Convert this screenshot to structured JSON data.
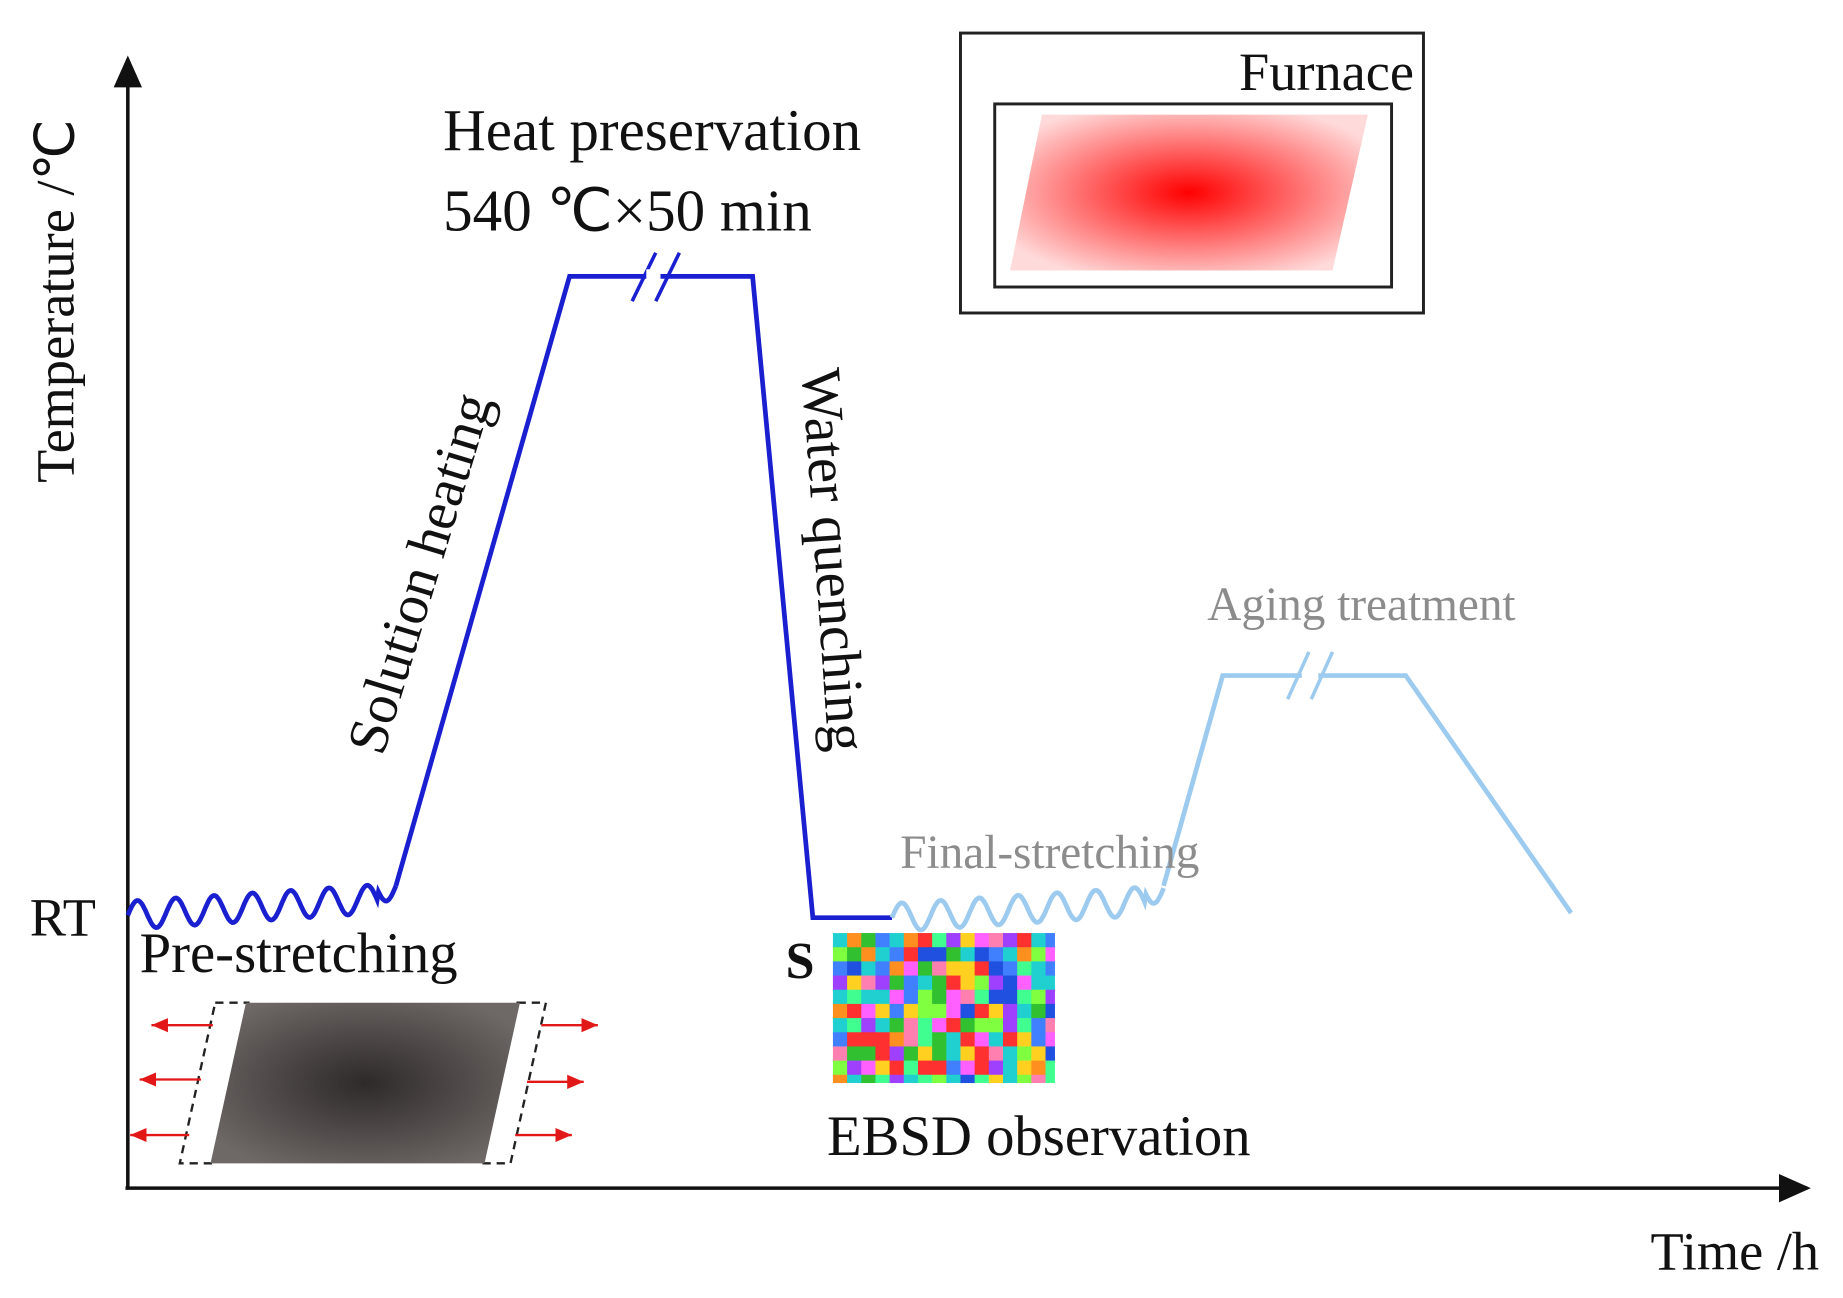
{
  "axes": {
    "y_label": "Temperature /℃",
    "x_label": "Time /h",
    "rt_label": "RT"
  },
  "furnace": {
    "label": "Furnace"
  },
  "stages": {
    "pre_stretching": "Pre-stretching",
    "solution_heating": "Solution heating",
    "heat_preservation": "Heat preservation",
    "heat_condition": "540 ℃×50 min",
    "water_quenching": "Water quenching",
    "final_stretching": "Final-stretching",
    "aging_treatment": "Aging treatment"
  },
  "ebsd": {
    "marker": "S",
    "label": "EBSD observation"
  }
}
